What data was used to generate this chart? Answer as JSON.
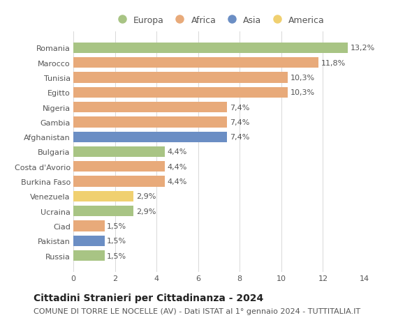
{
  "categories": [
    "Romania",
    "Marocco",
    "Tunisia",
    "Egitto",
    "Nigeria",
    "Gambia",
    "Afghanistan",
    "Bulgaria",
    "Costa d'Avorio",
    "Burkina Faso",
    "Venezuela",
    "Ucraina",
    "Ciad",
    "Pakistan",
    "Russia"
  ],
  "values": [
    13.2,
    11.8,
    10.3,
    10.3,
    7.4,
    7.4,
    7.4,
    4.4,
    4.4,
    4.4,
    2.9,
    2.9,
    1.5,
    1.5,
    1.5
  ],
  "labels": [
    "13,2%",
    "11,8%",
    "10,3%",
    "10,3%",
    "7,4%",
    "7,4%",
    "7,4%",
    "4,4%",
    "4,4%",
    "4,4%",
    "2,9%",
    "2,9%",
    "1,5%",
    "1,5%",
    "1,5%"
  ],
  "continents": [
    "Europa",
    "Africa",
    "Africa",
    "Africa",
    "Africa",
    "Africa",
    "Asia",
    "Europa",
    "Africa",
    "Africa",
    "America",
    "Europa",
    "Africa",
    "Asia",
    "Europa"
  ],
  "continent_colors": {
    "Europa": "#a8c484",
    "Africa": "#e8aa7a",
    "Asia": "#6b8ec4",
    "America": "#f0d070"
  },
  "legend_order": [
    "Europa",
    "Africa",
    "Asia",
    "America"
  ],
  "xlim": [
    0,
    14
  ],
  "xticks": [
    0,
    2,
    4,
    6,
    8,
    10,
    12,
    14
  ],
  "title": "Cittadini Stranieri per Cittadinanza - 2024",
  "subtitle": "COMUNE DI TORRE LE NOCELLE (AV) - Dati ISTAT al 1° gennaio 2024 - TUTTITALIA.IT",
  "background_color": "#ffffff",
  "grid_color": "#d8d8d8",
  "bar_height": 0.72,
  "title_fontsize": 10,
  "subtitle_fontsize": 8,
  "label_fontsize": 8,
  "tick_fontsize": 8,
  "legend_fontsize": 9
}
